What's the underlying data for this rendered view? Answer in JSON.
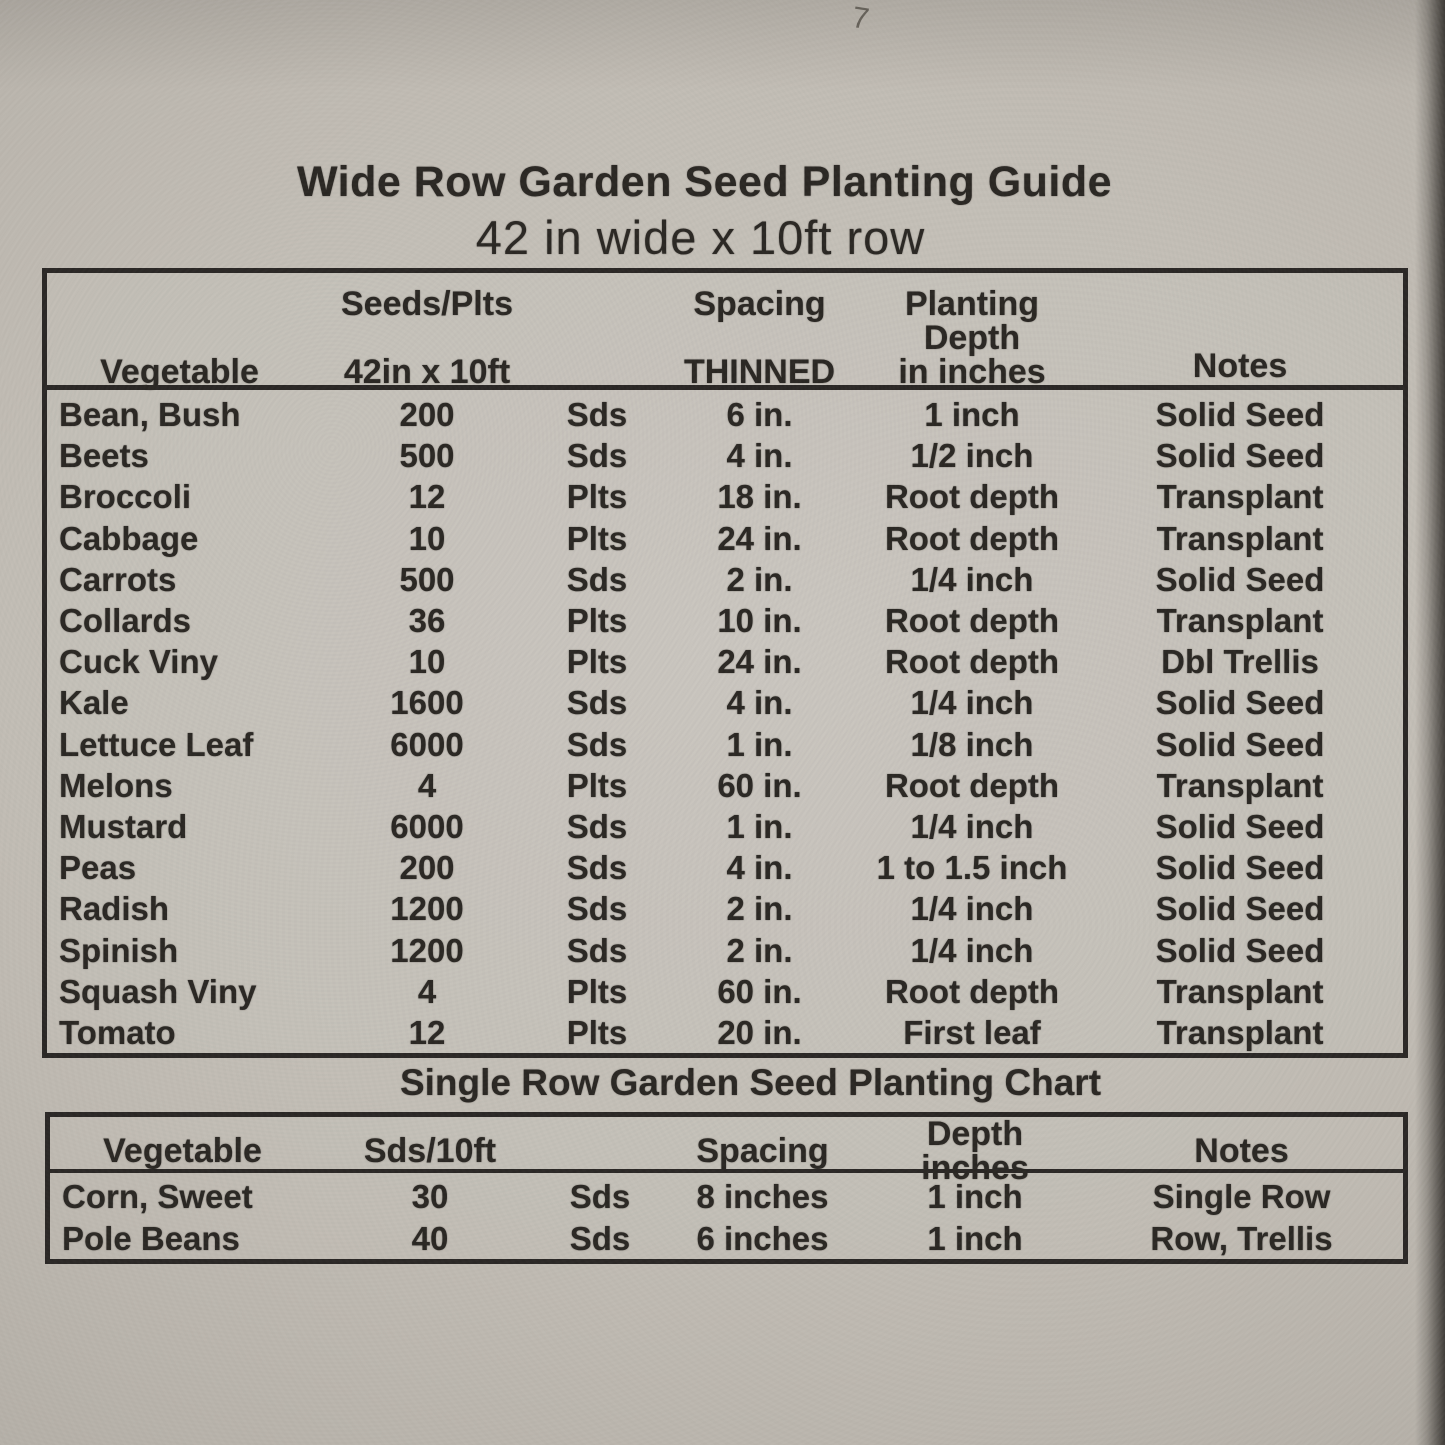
{
  "page": {
    "title": "Wide Row Garden Seed Planting Guide",
    "subtitle": "42 in wide x 10ft row",
    "corner_mark": "7"
  },
  "colors": {
    "paper": "#c3beb6",
    "ink": "#2b2824",
    "border": "#2b2826"
  },
  "wide_table": {
    "header": {
      "col_vegetable": "Vegetable",
      "col_seeds_line1": "Seeds/Plts",
      "col_seeds_line2": "42in x 10ft",
      "col_spacing_line1": "Spacing",
      "col_spacing_line2": "THINNED",
      "col_depth_line1": "Planting Depth",
      "col_depth_line2": "in inches",
      "col_notes": "Notes"
    },
    "rows": [
      {
        "vegetable": "Bean, Bush",
        "count": "200",
        "unit": "Sds",
        "spacing": "6 in.",
        "depth": "1 inch",
        "notes": "Solid Seed"
      },
      {
        "vegetable": "Beets",
        "count": "500",
        "unit": "Sds",
        "spacing": "4 in.",
        "depth": "1/2 inch",
        "notes": "Solid Seed"
      },
      {
        "vegetable": "Broccoli",
        "count": "12",
        "unit": "Plts",
        "spacing": "18 in.",
        "depth": "Root depth",
        "notes": "Transplant"
      },
      {
        "vegetable": "Cabbage",
        "count": "10",
        "unit": "Plts",
        "spacing": "24 in.",
        "depth": "Root depth",
        "notes": "Transplant"
      },
      {
        "vegetable": "Carrots",
        "count": "500",
        "unit": "Sds",
        "spacing": "2 in.",
        "depth": "1/4 inch",
        "notes": "Solid Seed"
      },
      {
        "vegetable": "Collards",
        "count": "36",
        "unit": "Plts",
        "spacing": "10 in.",
        "depth": "Root depth",
        "notes": "Transplant"
      },
      {
        "vegetable": "Cuck Viny",
        "count": "10",
        "unit": "Plts",
        "spacing": "24 in.",
        "depth": "Root depth",
        "notes": "Dbl Trellis"
      },
      {
        "vegetable": "Kale",
        "count": "1600",
        "unit": "Sds",
        "spacing": "4 in.",
        "depth": "1/4 inch",
        "notes": "Solid Seed"
      },
      {
        "vegetable": "Lettuce Leaf",
        "count": "6000",
        "unit": "Sds",
        "spacing": "1 in.",
        "depth": "1/8 inch",
        "notes": "Solid Seed"
      },
      {
        "vegetable": "Melons",
        "count": "4",
        "unit": "Plts",
        "spacing": "60 in.",
        "depth": "Root depth",
        "notes": "Transplant"
      },
      {
        "vegetable": "Mustard",
        "count": "6000",
        "unit": "Sds",
        "spacing": "1 in.",
        "depth": "1/4 inch",
        "notes": "Solid Seed"
      },
      {
        "vegetable": "Peas",
        "count": "200",
        "unit": "Sds",
        "spacing": "4 in.",
        "depth": "1 to 1.5 inch",
        "notes": "Solid Seed"
      },
      {
        "vegetable": "Radish",
        "count": "1200",
        "unit": "Sds",
        "spacing": "2 in.",
        "depth": "1/4 inch",
        "notes": "Solid Seed"
      },
      {
        "vegetable": "Spinish",
        "count": "1200",
        "unit": "Sds",
        "spacing": "2 in.",
        "depth": "1/4 inch",
        "notes": "Solid Seed"
      },
      {
        "vegetable": "Squash Viny",
        "count": "4",
        "unit": "Plts",
        "spacing": "60 in.",
        "depth": "Root depth",
        "notes": "Transplant"
      },
      {
        "vegetable": "Tomato",
        "count": "12",
        "unit": "Plts",
        "spacing": "20 in.",
        "depth": "First leaf",
        "notes": "Transplant"
      }
    ]
  },
  "single_table": {
    "title": "Single Row Garden Seed Planting Chart",
    "header": {
      "col_vegetable": "Vegetable",
      "col_seeds": "Sds/10ft",
      "col_spacing": "Spacing",
      "col_depth": "Depth inches",
      "col_notes": "Notes"
    },
    "rows": [
      {
        "vegetable": "Corn, Sweet",
        "count": "30",
        "unit": "Sds",
        "spacing": "8 inches",
        "depth": "1 inch",
        "notes": "Single Row"
      },
      {
        "vegetable": "Pole Beans",
        "count": "40",
        "unit": "Sds",
        "spacing": "6 inches",
        "depth": "1 inch",
        "notes": "Row, Trellis"
      }
    ]
  }
}
